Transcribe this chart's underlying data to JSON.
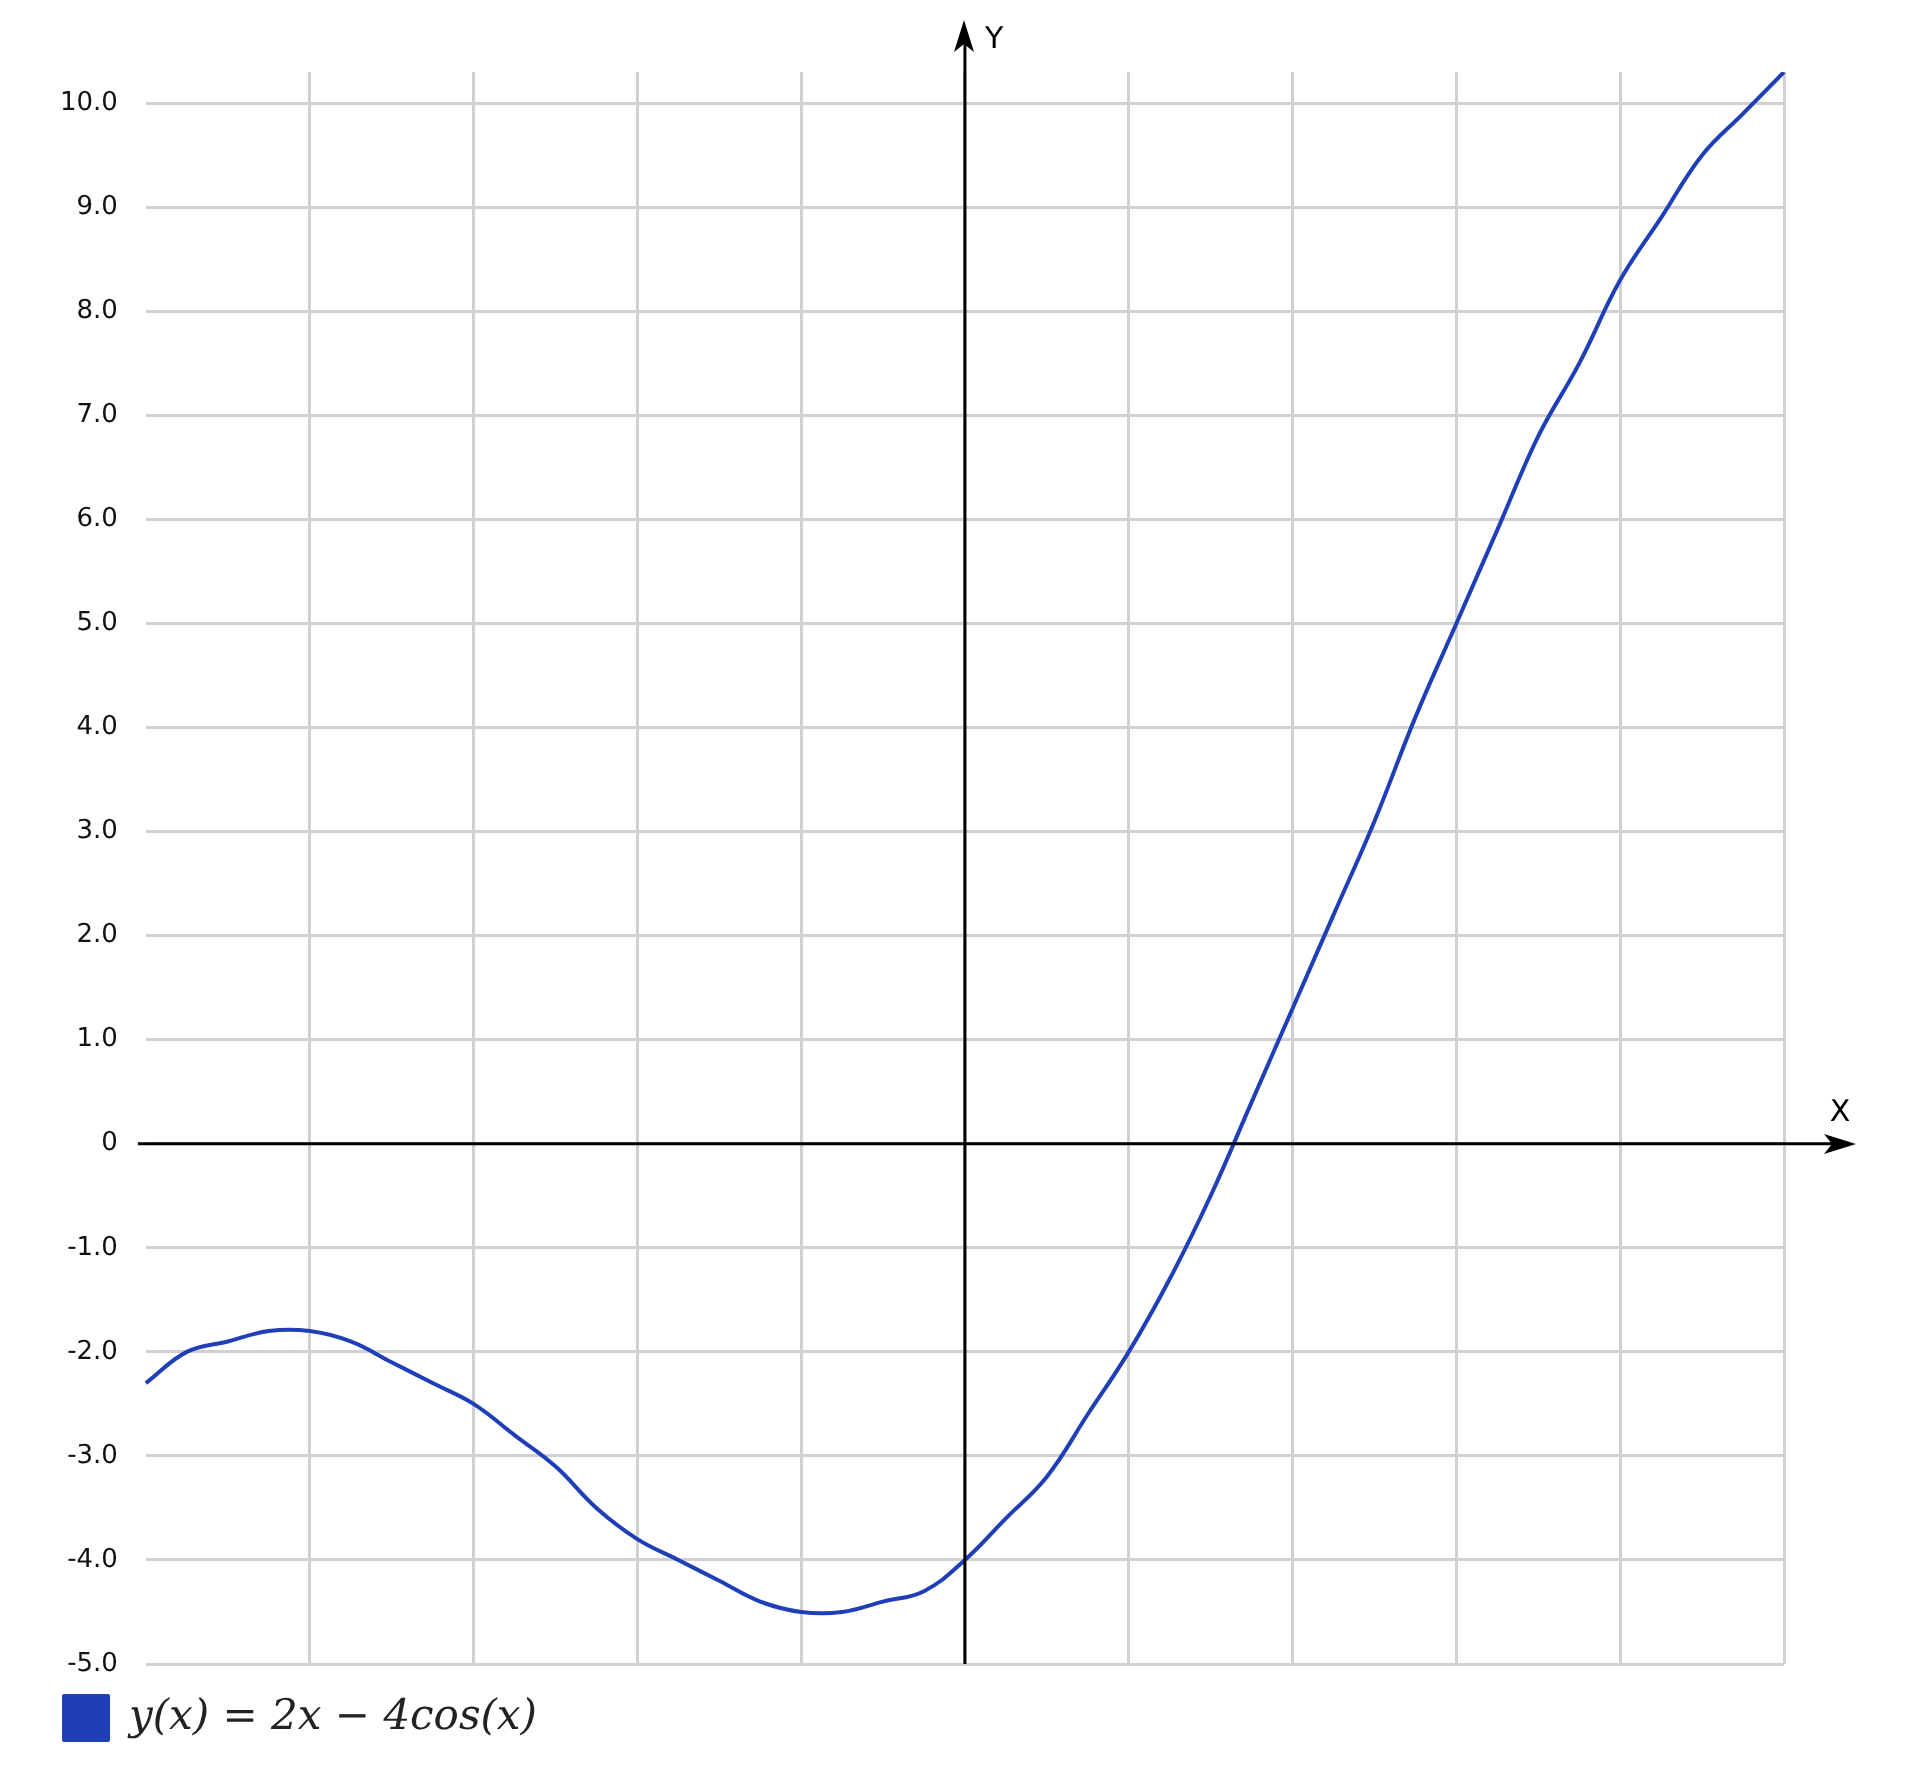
{
  "chart_data": {
    "type": "line",
    "xlabel": "X",
    "ylabel": "Y",
    "categories": [
      null,
      null,
      null,
      null,
      null,
      null,
      null,
      null,
      null,
      null,
      null,
      null,
      null,
      null,
      null,
      null,
      null,
      null,
      null,
      null,
      null,
      null,
      null,
      null,
      null,
      null,
      null,
      null,
      null,
      null,
      null,
      null,
      null,
      null,
      null,
      null,
      null,
      null,
      null,
      null,
      null
    ],
    "series": [
      {
        "name": "y(x) = 2x − 4cos(x)",
        "color": "#1f3fb8",
        "values": [
          -2.3,
          -2.0,
          -1.9,
          -1.8,
          -1.8,
          -1.9,
          -2.1,
          -2.3,
          -2.5,
          -2.8,
          -3.1,
          -3.5,
          -3.8,
          -4.0,
          -4.2,
          -4.4,
          -4.5,
          -4.5,
          -4.4,
          -4.3,
          -4.0,
          -3.6,
          -3.2,
          -2.6,
          -2.0,
          -1.3,
          -0.5,
          0.4,
          1.3,
          2.2,
          3.1,
          4.1,
          5.0,
          5.9,
          6.8,
          7.5,
          8.3,
          8.9,
          9.5,
          9.9,
          10.3
        ]
      }
    ],
    "ylim": [
      -5,
      10.3
    ],
    "yticks": [
      {
        "value": -5,
        "label": "-5.0"
      },
      {
        "value": -4,
        "label": "-4.0"
      },
      {
        "value": -3,
        "label": "-3.0"
      },
      {
        "value": -2,
        "label": "-2.0"
      },
      {
        "value": -1,
        "label": "-1.0"
      },
      0,
      {
        "value": 1,
        "label": "1.0"
      },
      {
        "value": 2,
        "label": "2.0"
      },
      {
        "value": 3,
        "label": "3.0"
      },
      {
        "value": 4,
        "label": "4.0"
      },
      {
        "value": 5,
        "label": "5.0"
      },
      {
        "value": 6,
        "label": "6.0"
      },
      {
        "value": 7,
        "label": "7.0"
      },
      {
        "value": 8,
        "label": "8.0"
      },
      {
        "value": 9,
        "label": "9.0"
      },
      {
        "value": 10,
        "label": "10.0"
      }
    ],
    "grid": true,
    "legend": "bottom left",
    "tick_labels": "y",
    "marker": "none",
    "line_style": "solid"
  }
}
